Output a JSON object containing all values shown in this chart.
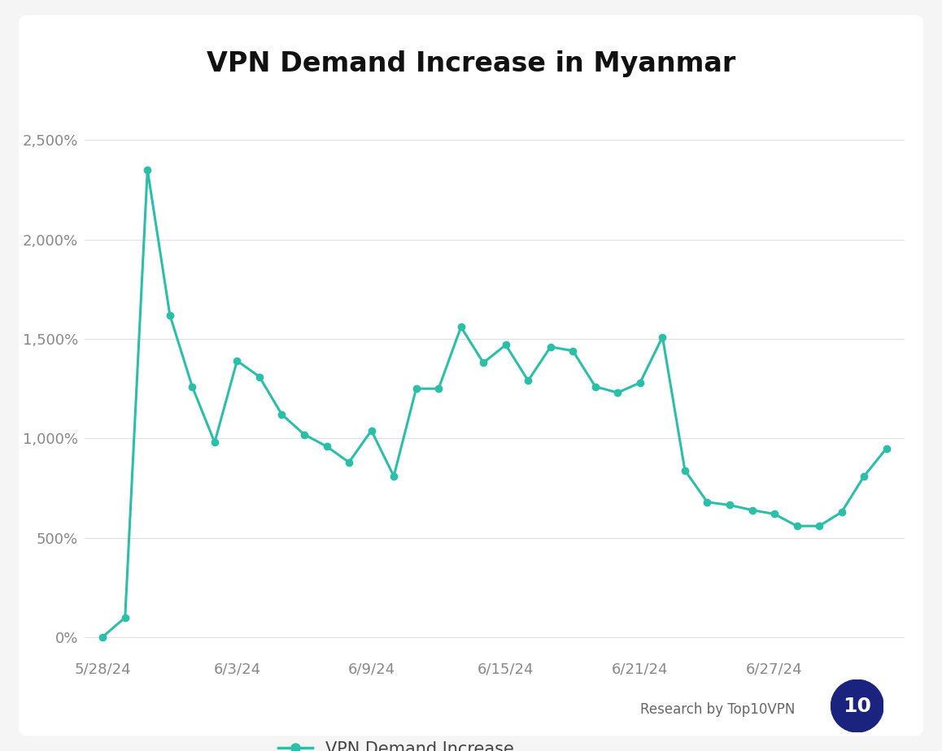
{
  "title": "VPN Demand Increase in Myanmar",
  "line_color": "#2BBFAA",
  "background_color": "#f5f5f5",
  "card_color": "#ffffff",
  "grid_color": "#e0e0e0",
  "legend_label": "VPN Demand Increase",
  "x_tick_labels": [
    "5/28/24",
    "6/3/24",
    "6/9/24",
    "6/15/24",
    "6/21/24",
    "6/27/24"
  ],
  "x_tick_positions": [
    0,
    6,
    12,
    18,
    24,
    30
  ],
  "y_ticks": [
    0,
    500,
    1000,
    1500,
    2000,
    2500
  ],
  "y_tick_labels": [
    "0%",
    "500%",
    "1,000%",
    "1,500%",
    "2,000%",
    "2,500%"
  ],
  "ylim": [
    -80,
    2750
  ],
  "xlim": [
    -0.8,
    35.8
  ],
  "data_values": [
    3,
    100,
    2350,
    1620,
    1260,
    980,
    1390,
    1310,
    1120,
    1020,
    960,
    880,
    1040,
    810,
    1250,
    1250,
    1560,
    1380,
    1470,
    1290,
    1460,
    1440,
    1260,
    1230,
    1280,
    1510,
    840,
    680,
    665,
    640,
    620,
    560,
    560,
    630,
    810,
    950
  ],
  "marker_size": 6,
  "line_width": 2.2,
  "title_fontsize": 24,
  "tick_fontsize": 13,
  "legend_fontsize": 15,
  "watermark_text": "Research by Top10VPN",
  "logo_text": "10",
  "logo_circle_color": "#1a237e",
  "tick_color": "#888888",
  "title_color": "#111111"
}
